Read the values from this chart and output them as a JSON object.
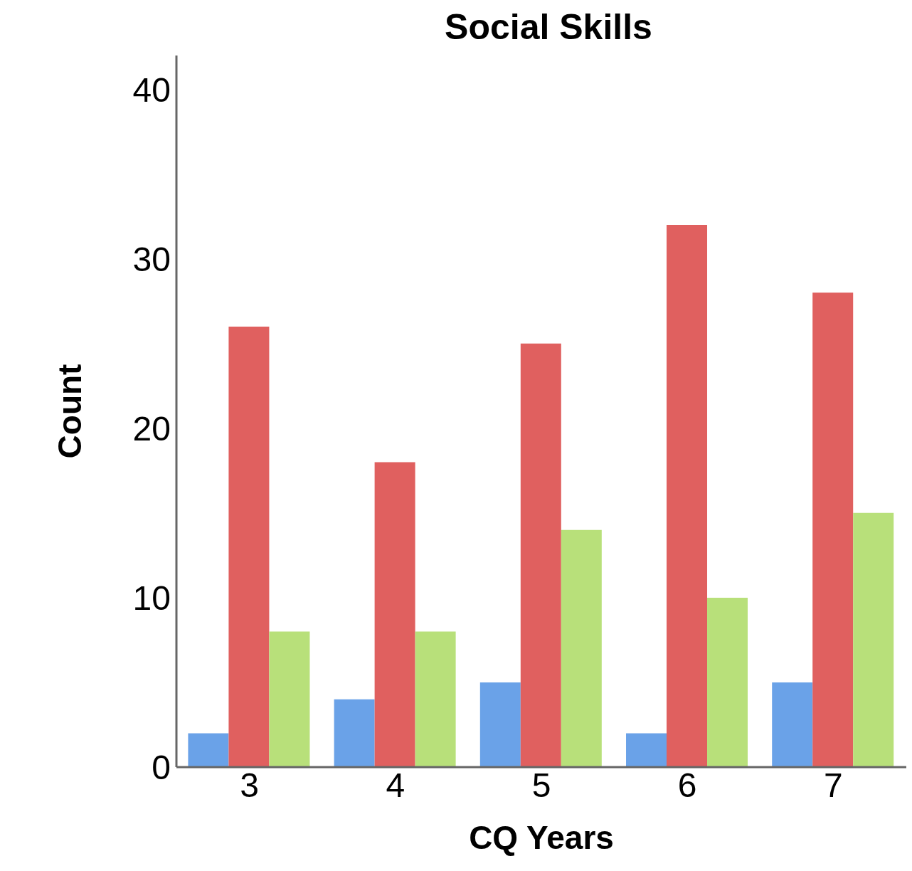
{
  "chart_data": {
    "type": "bar",
    "title": "Social Skills",
    "xlabel": "CQ Years",
    "ylabel": "Count",
    "categories": [
      "3",
      "4",
      "5",
      "6",
      "7"
    ],
    "series": [
      {
        "color": "#6aa2e8",
        "values": [
          2,
          4,
          5,
          2,
          5
        ]
      },
      {
        "color": "#e0605f",
        "values": [
          26,
          18,
          25,
          32,
          28
        ]
      },
      {
        "color": "#b8e07a",
        "values": [
          8,
          8,
          14,
          10,
          15
        ]
      }
    ],
    "ylim": [
      0,
      42
    ],
    "yticks": [
      0,
      10,
      20,
      30,
      40
    ],
    "grid": false,
    "legend": false
  }
}
